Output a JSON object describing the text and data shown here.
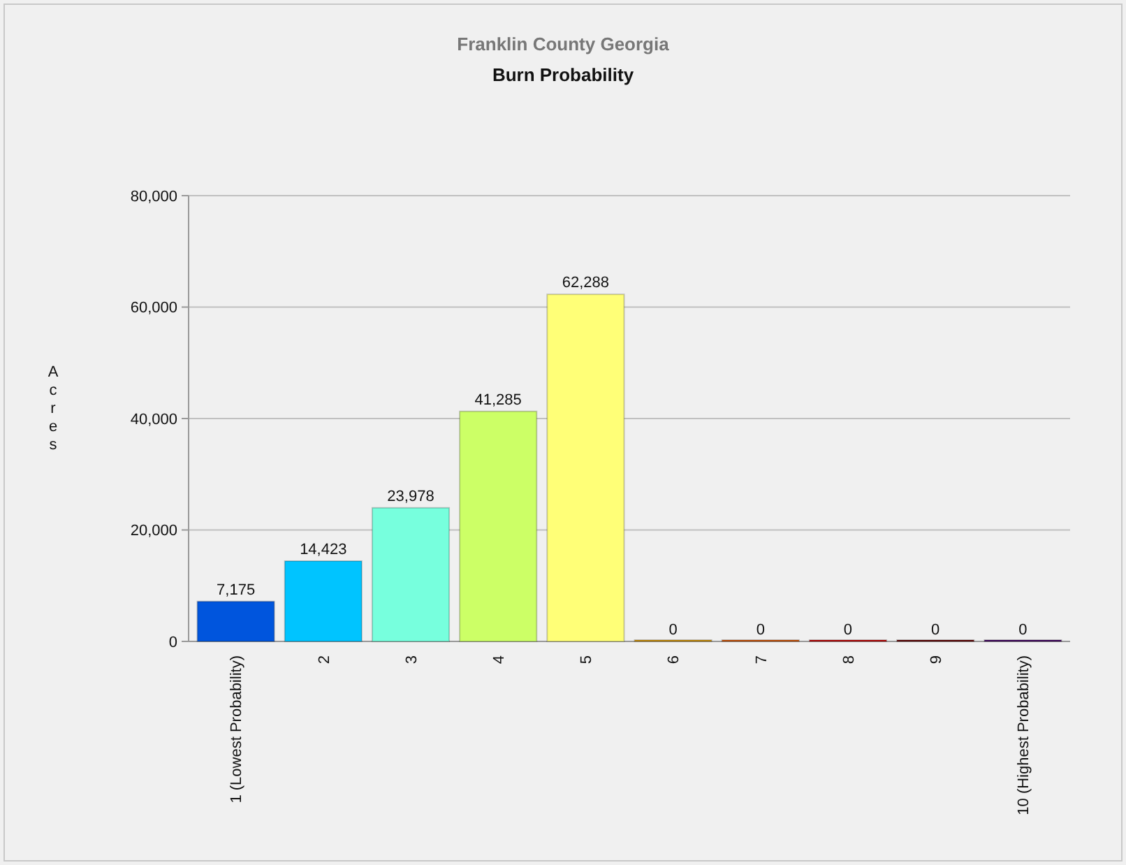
{
  "chart_data": {
    "type": "bar",
    "title": "Franklin County Georgia",
    "subtitle": "Burn Probability",
    "ylabel": "Acres",
    "categories": [
      "1 (Lowest Probability)",
      "2",
      "3",
      "4",
      "5",
      "6",
      "7",
      "8",
      "9",
      "10 (Highest Probability)"
    ],
    "values": [
      7175,
      14423,
      23978,
      41285,
      62288,
      0,
      0,
      0,
      0,
      0
    ],
    "value_labels": [
      "7,175",
      "14,423",
      "23,978",
      "41,285",
      "62,288",
      "0",
      "0",
      "0",
      "0",
      "0"
    ],
    "colors": [
      "#0055dd",
      "#00c4ff",
      "#77ffdd",
      "#ccff66",
      "#ffff77",
      "#dd9900",
      "#dd5500",
      "#cc0000",
      "#660000",
      "#440066"
    ],
    "ylim": [
      0,
      80000
    ],
    "yticks": [
      {
        "value": 0,
        "label": "0"
      },
      {
        "value": 20000,
        "label": "20,000"
      },
      {
        "value": 40000,
        "label": "40,000"
      },
      {
        "value": 60000,
        "label": "60,000"
      },
      {
        "value": 80000,
        "label": "80,000"
      }
    ],
    "grid": "y"
  }
}
